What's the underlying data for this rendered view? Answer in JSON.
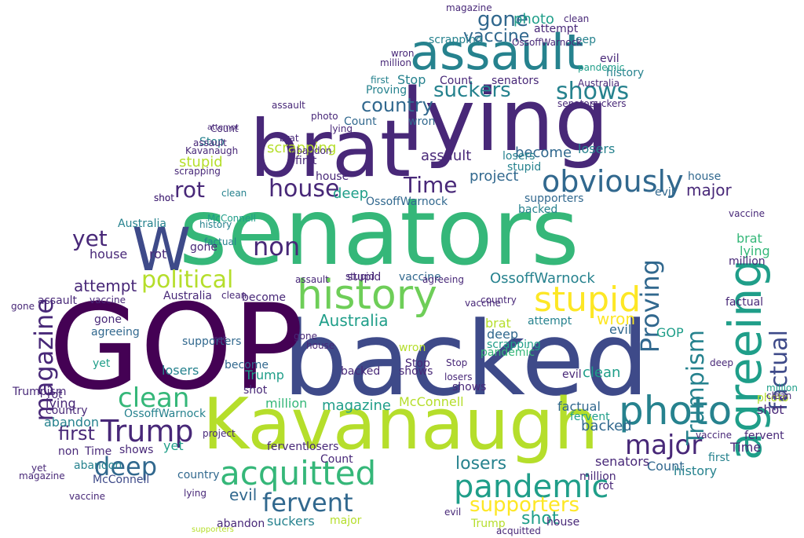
{
  "words": {
    "senators": "senators",
    "backed": "backed",
    "gop": "GOP",
    "kavanaugh": "Kavanaugh",
    "lying": "lying",
    "brat": "brat",
    "assault": "assault",
    "w": "W",
    "history": "history",
    "stupid": "stupid",
    "photo": "photo",
    "agreeing": "agreeing",
    "pandemic": "pandemic",
    "acquitted": "acquitted",
    "obviously": "obviously",
    "house": "house",
    "trump": "Trump",
    "clean": "clean",
    "major": "major",
    "deep": "deep",
    "magazine": "magazine",
    "political": "political",
    "proving": "Proving",
    "trumpism": "Trumpism",
    "factual": "factual",
    "shows": "shows",
    "suckers": "suckers",
    "country": "country",
    "vaccine": "vaccine",
    "gone": "gone",
    "rot": "rot",
    "non": "non",
    "time": "Time",
    "yet": "yet",
    "fervent": "fervent",
    "supporters": "supporters",
    "shot": "shot",
    "first": "first",
    "losers": "losers",
    "evil": "evil",
    "count": "Count",
    "mcconnell": "McConnell",
    "ossoffwarnock": "OssoffWarnock",
    "australia": "Australia",
    "attempt": "attempt",
    "scrapping": "scrapping",
    "abandon": "abandon",
    "become": "become",
    "project": "project",
    "million": "million",
    "stop": "Stop",
    "wron": "wron",
    "abandom": "abandon"
  },
  "palette": {
    "dark_purple": "#440154",
    "purple": "#482878",
    "indigo": "#3e4a89",
    "blue": "#31688e",
    "teal": "#26828e",
    "green_teal": "#1f9e89",
    "green": "#35b779",
    "lime": "#6ece58",
    "yellow_green": "#b5de2b",
    "yellow": "#fde725"
  }
}
